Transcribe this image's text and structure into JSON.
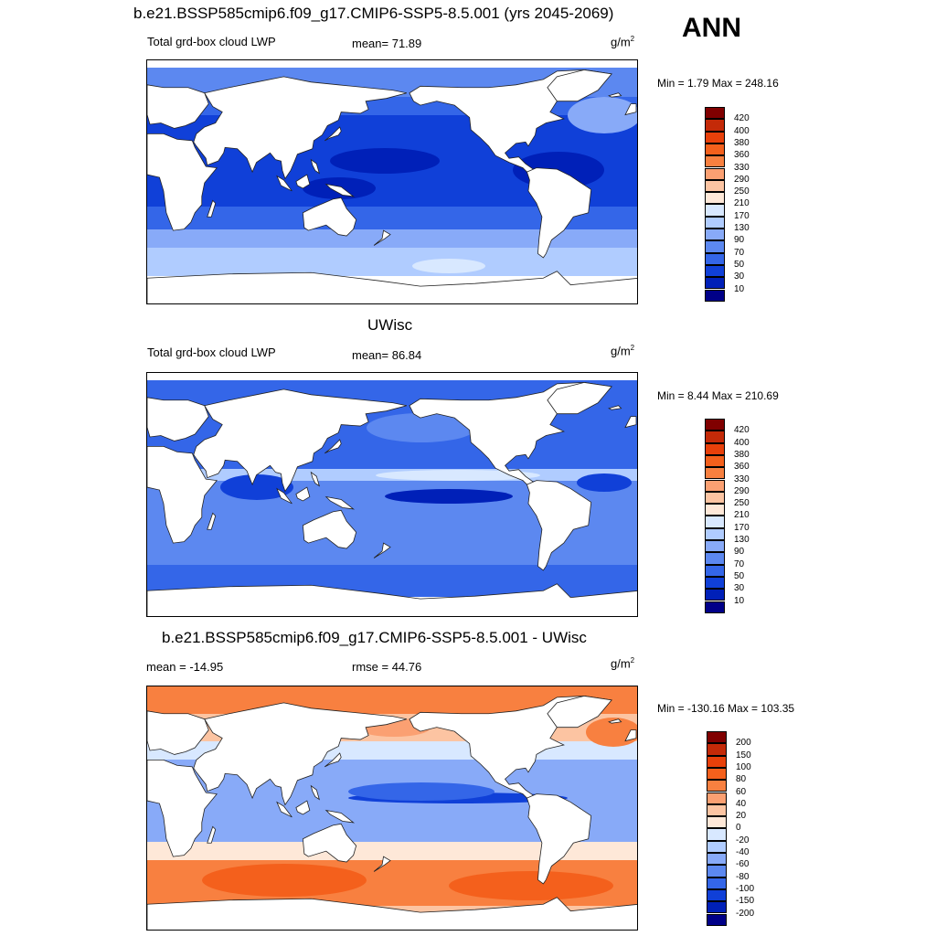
{
  "header": {
    "title": "b.e21.BSSP585cmip6.f09_g17.CMIP6-SSP5-8.5.001 (yrs 2045-2069)",
    "season": "ANN"
  },
  "panels": [
    {
      "id": "test",
      "heading": "",
      "left_label": "Total grd-box cloud LWP",
      "center_label": "mean=  71.89",
      "units": "g/m",
      "units_sup": "2",
      "minmax": "Min =   1.79 Max = 248.16",
      "palette": "absolute",
      "regime": "model"
    },
    {
      "id": "obs",
      "heading": "UWisc",
      "left_label": "Total grd-box cloud LWP",
      "center_label": "mean=  86.84",
      "units": "g/m",
      "units_sup": "2",
      "minmax": "Min =   8.44 Max = 210.69",
      "palette": "absolute",
      "regime": "obs"
    },
    {
      "id": "diff",
      "heading": "b.e21.BSSP585cmip6.f09_g17.CMIP6-SSP5-8.5.001 - UWisc",
      "left_label": "mean = -14.95",
      "center_label": "rmse =  44.76",
      "units": "g/m",
      "units_sup": "2",
      "minmax": "Min = -130.16 Max = 103.35",
      "palette": "difference",
      "regime": "diff"
    }
  ],
  "colorbars": {
    "absolute": {
      "levels": [
        "420",
        "400",
        "380",
        "360",
        "330",
        "290",
        "250",
        "210",
        "170",
        "130",
        "90",
        "70",
        "50",
        "30",
        "10"
      ],
      "colors": [
        "#800000",
        "#c42a08",
        "#e8400a",
        "#f4601c",
        "#f88040",
        "#fba072",
        "#fcc4a2",
        "#fee8d8",
        "#d8e8ff",
        "#b0ccff",
        "#88aaf8",
        "#5c88f0",
        "#3466e8",
        "#1040d8",
        "#0020b8",
        "#000088"
      ]
    },
    "difference": {
      "levels": [
        "200",
        "150",
        "100",
        "80",
        "60",
        "40",
        "20",
        "0",
        "-20",
        "-40",
        "-60",
        "-80",
        "-100",
        "-150",
        "-200"
      ],
      "colors": [
        "#800000",
        "#c42a08",
        "#e8400a",
        "#f4601c",
        "#f88040",
        "#fba072",
        "#fcc4a2",
        "#fee8d8",
        "#d8e8ff",
        "#b0ccff",
        "#88aaf8",
        "#5c88f0",
        "#3466e8",
        "#1040d8",
        "#0020b8",
        "#000088"
      ]
    }
  }
}
